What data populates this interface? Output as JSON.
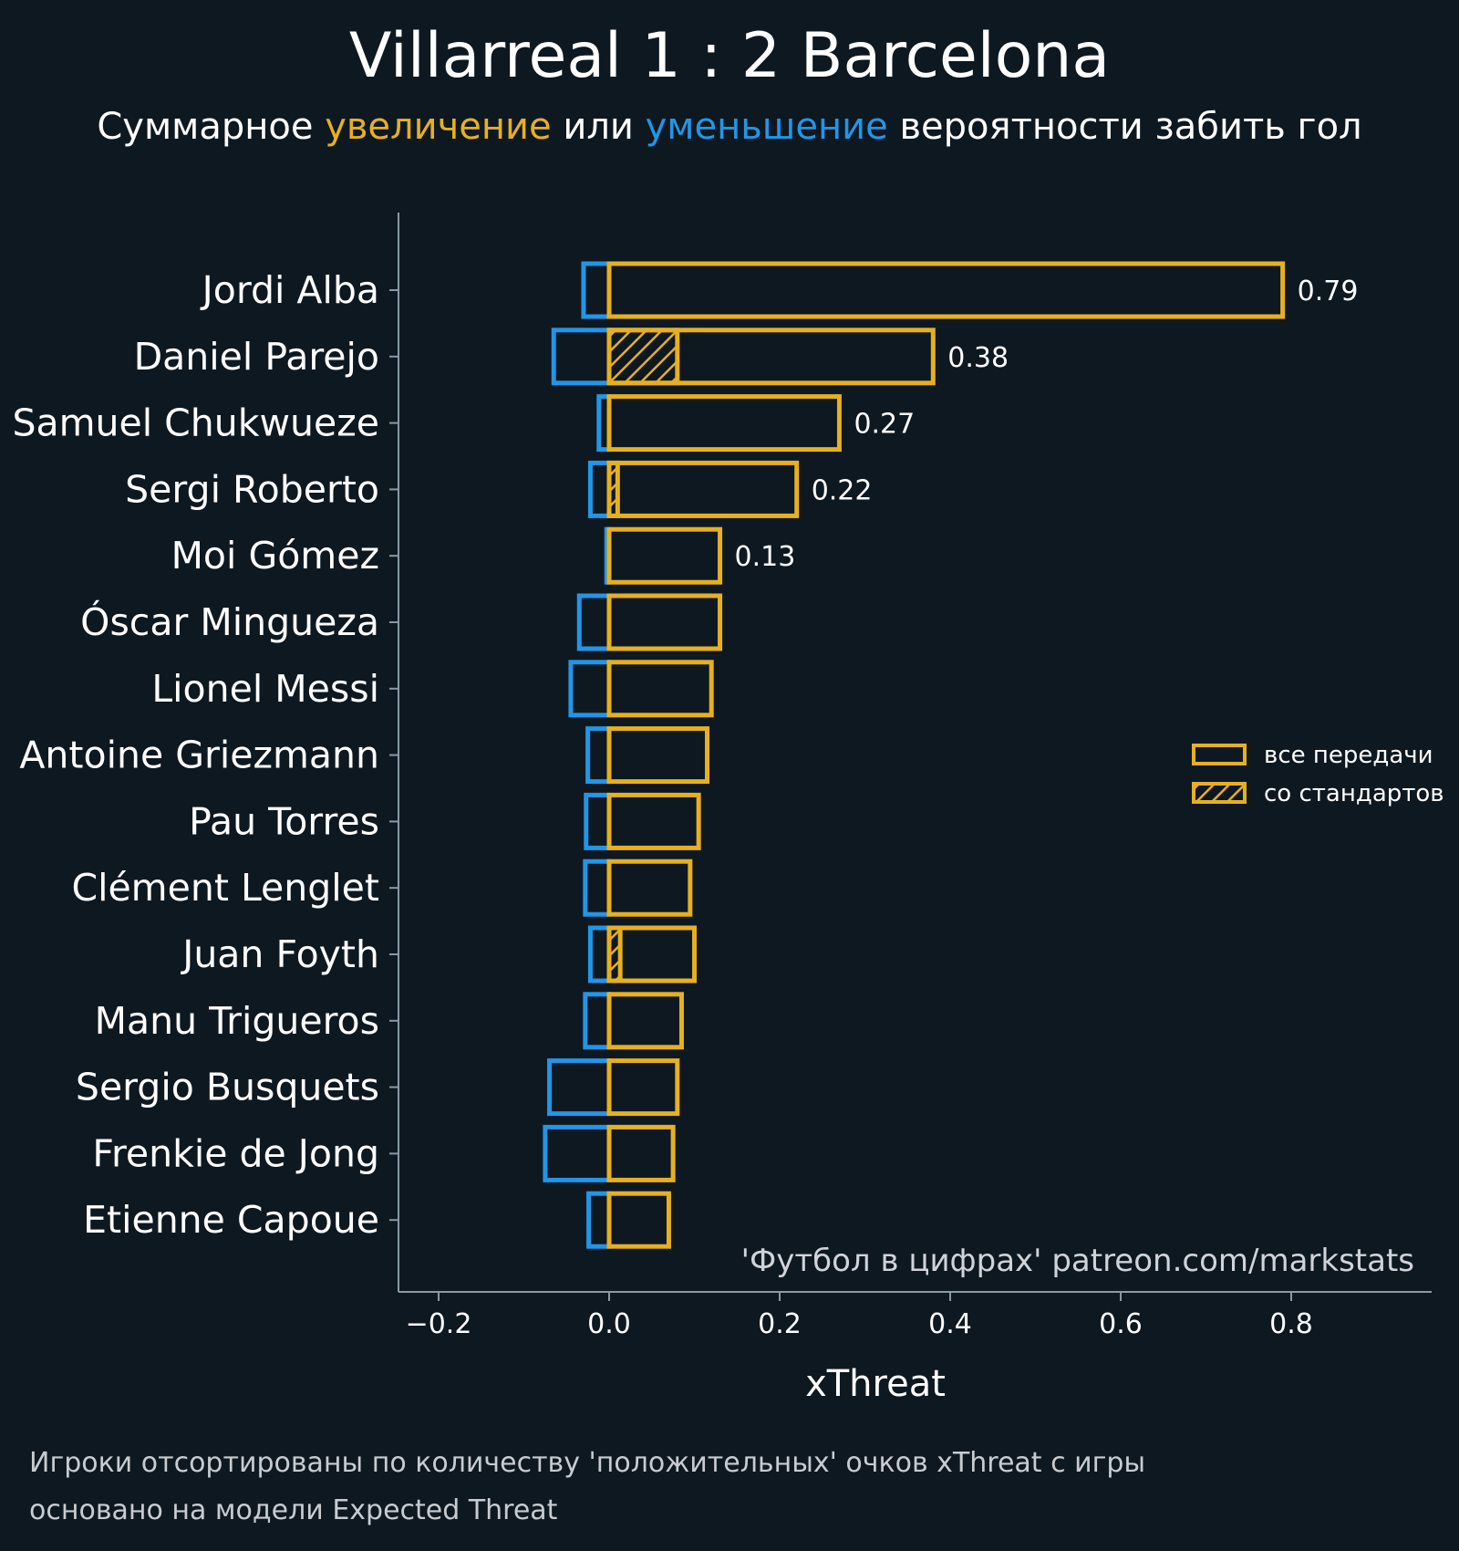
{
  "title": "Villarreal 1 : 2 Barcelona",
  "subtitle": {
    "part1": "Суммарное ",
    "increase": "увеличение",
    "part2": " или ",
    "decrease": "уменьшение",
    "part3": " вероятности забить гол"
  },
  "colors": {
    "background": "#0e1821",
    "positive": "#e6b020",
    "negative": "#2196e8",
    "axis": "#8a9aa4"
  },
  "credit": "'Футбол в цифрах' patreon.com/markstats",
  "footnote": {
    "line1": "Игроки отсортированы по количеству 'положительных' очков xThreat с игры",
    "line2": "основано на модели Expected Threat"
  },
  "legend": {
    "all_passes": "все передачи",
    "set_pieces": "со стандартов"
  },
  "chart_data": {
    "type": "bar",
    "orientation": "horizontal",
    "xlabel": "xThreat",
    "xlim": [
      -0.25,
      0.96
    ],
    "xticks": [
      -0.2,
      0.0,
      0.2,
      0.4,
      0.6,
      0.8
    ],
    "xtick_labels": [
      "−0.2",
      "0.0",
      "0.2",
      "0.4",
      "0.6",
      "0.8"
    ],
    "categories": [
      "Jordi Alba",
      "Daniel Parejo",
      "Samuel Chukwueze",
      "Sergi Roberto",
      "Moi Gómez",
      "Óscar Mingueza",
      "Lionel Messi",
      "Antoine Griezmann",
      "Pau Torres",
      "Clément Lenglet",
      "Juan Foyth",
      "Manu Trigueros",
      "Sergio Busquets",
      "Frenkie de Jong",
      "Etienne Capoue"
    ],
    "series": [
      {
        "name": "все передачи",
        "values": [
          0.79,
          0.38,
          0.27,
          0.22,
          0.13,
          0.13,
          0.12,
          0.115,
          0.105,
          0.095,
          0.1,
          0.085,
          0.08,
          0.075,
          0.07
        ]
      },
      {
        "name": "со стандартов",
        "values": [
          0.0,
          0.08,
          0.0,
          0.01,
          0.0,
          0.0,
          0.0,
          0.0,
          0.0,
          0.0,
          0.013,
          0.0,
          0.0,
          0.0,
          0.0
        ]
      },
      {
        "values": [
          -0.03,
          -0.065,
          -0.012,
          -0.022,
          -0.003,
          -0.035,
          -0.045,
          -0.025,
          -0.027,
          -0.028,
          -0.022,
          -0.028,
          -0.07,
          -0.075,
          -0.024
        ]
      }
    ],
    "value_labels": [
      "0.79",
      "0.38",
      "0.27",
      "0.22",
      "0.13",
      "",
      "",
      "",
      "",
      "",
      "",
      "",
      "",
      "",
      ""
    ],
    "legend_position": "right"
  }
}
